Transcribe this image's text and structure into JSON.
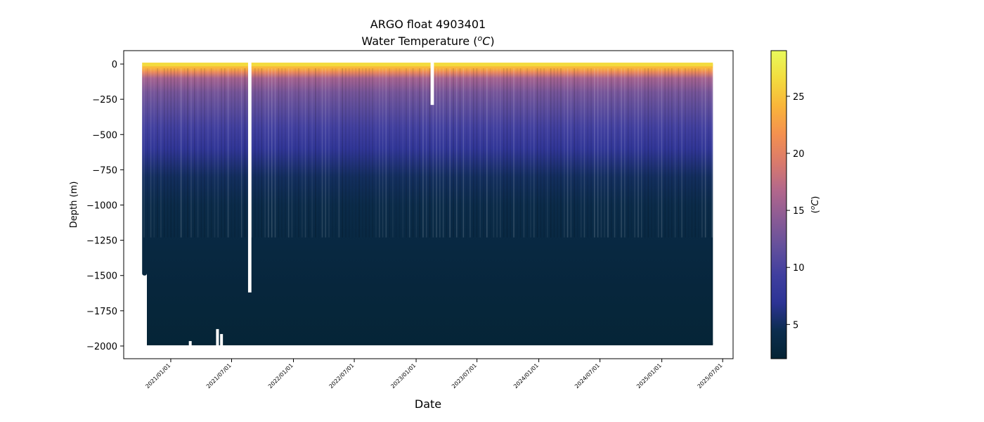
{
  "chart_data": {
    "type": "scatter",
    "title": "ARGO float 4903401",
    "subtitle_prefix": "Water Temperature (",
    "subtitle_unit_sup": "o",
    "subtitle_unit": "C",
    "subtitle_suffix": ")",
    "xlabel": "Date",
    "ylabel": "Depth (m)",
    "ylim": [
      -2090,
      95
    ],
    "xlim": [
      "2020-08-14",
      "2025-08-01"
    ],
    "y_ticks": [
      0,
      -250,
      -500,
      -750,
      -1000,
      -1250,
      -1500,
      -1750,
      -2000
    ],
    "y_tick_labels": [
      "0",
      "−250",
      "−500",
      "−750",
      "−1000",
      "−1250",
      "−1500",
      "−1750",
      "−2000"
    ],
    "x_ticks": [
      "2021-01-01",
      "2021-07-01",
      "2022-01-01",
      "2022-07-01",
      "2023-01-01",
      "2023-07-01",
      "2024-01-01",
      "2024-07-01",
      "2025-01-01",
      "2025-07-01"
    ],
    "x_tick_labels": [
      "2021/01/01",
      "2021/07/01",
      "2022/01/01",
      "2022/07/01",
      "2023/01/01",
      "2023/07/01",
      "2024/01/01",
      "2024/07/01",
      "2025/01/01",
      "2025/07/01"
    ],
    "data_extent": {
      "first_profile": "2020-10-12",
      "last_profile": "2025-06-02",
      "surface_depth": 0,
      "max_depth": -1985,
      "first_profiles_max_depth": -1500,
      "first_profiles_end": "2020-10-22"
    },
    "gaps": [
      {
        "start": "2021-08-19",
        "end": "2021-08-29",
        "from_depth": 0,
        "to_depth": -1620
      },
      {
        "start": "2023-02-13",
        "end": "2023-02-23",
        "from_depth": 0,
        "to_depth": -290
      }
    ],
    "shallow_profiles": [
      {
        "date": "2021-02-28",
        "max_depth": -1965
      },
      {
        "date": "2021-05-20",
        "max_depth": -1880
      },
      {
        "date": "2021-06-01",
        "max_depth": -1915
      }
    ],
    "temperature_profile": [
      {
        "depth": 0,
        "temp": 26.0
      },
      {
        "depth": -30,
        "temp": 24.0
      },
      {
        "depth": -60,
        "temp": 20.5
      },
      {
        "depth": -100,
        "temp": 16.0
      },
      {
        "depth": -200,
        "temp": 13.0
      },
      {
        "depth": -300,
        "temp": 11.5
      },
      {
        "depth": -450,
        "temp": 9.5
      },
      {
        "depth": -600,
        "temp": 7.5
      },
      {
        "depth": -800,
        "temp": 5.0
      },
      {
        "depth": -1000,
        "temp": 4.0
      },
      {
        "depth": -1300,
        "temp": 3.3
      },
      {
        "depth": -1600,
        "temp": 2.8
      },
      {
        "depth": -2000,
        "temp": 2.4
      }
    ],
    "colorbar": {
      "label_prefix": "(",
      "label_sup": "o",
      "label_unit": "C",
      "label_suffix": ")",
      "colormap": "cmocean thermal",
      "vmin": 2.0,
      "vmax": 29.0,
      "ticks": [
        5,
        10,
        15,
        20,
        25
      ],
      "tick_labels": [
        "5",
        "10",
        "15",
        "20",
        "25"
      ],
      "colors": [
        "#042333",
        "#0c2d4e",
        "#2c3395",
        "#403f9f",
        "#64509c",
        "#8a5b95",
        "#b2678c",
        "#d97a6c",
        "#f49050",
        "#f9b43a",
        "#f3dc3e",
        "#e8fa5b"
      ]
    }
  }
}
